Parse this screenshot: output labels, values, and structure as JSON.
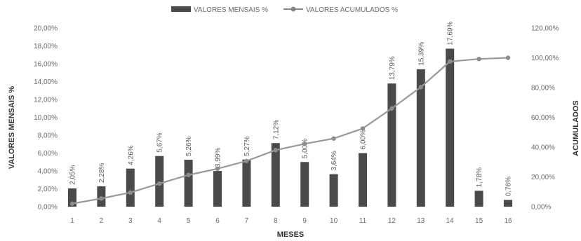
{
  "chart_data": {
    "type": "bar",
    "xlabel": "MESES",
    "ylabel": "VALORES MENSAIS %",
    "y2label": "ACUMULADOS",
    "legend": {
      "position": "top-center",
      "items": [
        {
          "label": "VALORES MENSAIS %",
          "kind": "bar"
        },
        {
          "label": "VALORES ACUMULADOS %",
          "kind": "line-marker"
        }
      ]
    },
    "categories": [
      "1",
      "2",
      "3",
      "4",
      "5",
      "6",
      "7",
      "8",
      "9",
      "10",
      "11",
      "12",
      "13",
      "14",
      "15",
      "16"
    ],
    "series": [
      {
        "name": "VALORES MENSAIS %",
        "type": "bar",
        "axis": "left",
        "color": "#4a4a4a",
        "values": [
          2.05,
          2.28,
          4.26,
          5.67,
          5.26,
          3.99,
          5.27,
          7.12,
          5.0,
          3.64,
          6.0,
          13.79,
          15.39,
          17.69,
          1.78,
          0.76
        ],
        "labels": [
          "2,05%",
          "2,28%",
          "4,26%",
          "5,67%",
          "5,26%",
          "3,99%",
          "5,27%",
          "7,12%",
          "5,00%",
          "3,64%",
          "6,00%",
          "13,79%",
          "15,39%",
          "17,69%",
          "1,78%",
          "0,76%"
        ]
      },
      {
        "name": "VALORES ACUMULADOS %",
        "type": "line",
        "axis": "right",
        "color": "#999999",
        "values": [
          2.05,
          5.5,
          9.5,
          15.5,
          21.3,
          25.5,
          30.7,
          38.0,
          42.2,
          45.8,
          52.5,
          66.0,
          80.3,
          97.5,
          99.2,
          100.0
        ]
      }
    ],
    "yticks_left": [
      "0,00%",
      "2,00%",
      "4,00%",
      "6,00%",
      "8,00%",
      "10,00%",
      "12,00%",
      "14,00%",
      "16,00%",
      "18,00%",
      "20,00%"
    ],
    "yticks_right": [
      "0,00%",
      "20,00%",
      "40,00%",
      "60,00%",
      "80,00%",
      "100,00%",
      "120,00%"
    ],
    "ylim_left": [
      0,
      20
    ],
    "ylim_right": [
      0,
      120
    ],
    "grid": false
  }
}
